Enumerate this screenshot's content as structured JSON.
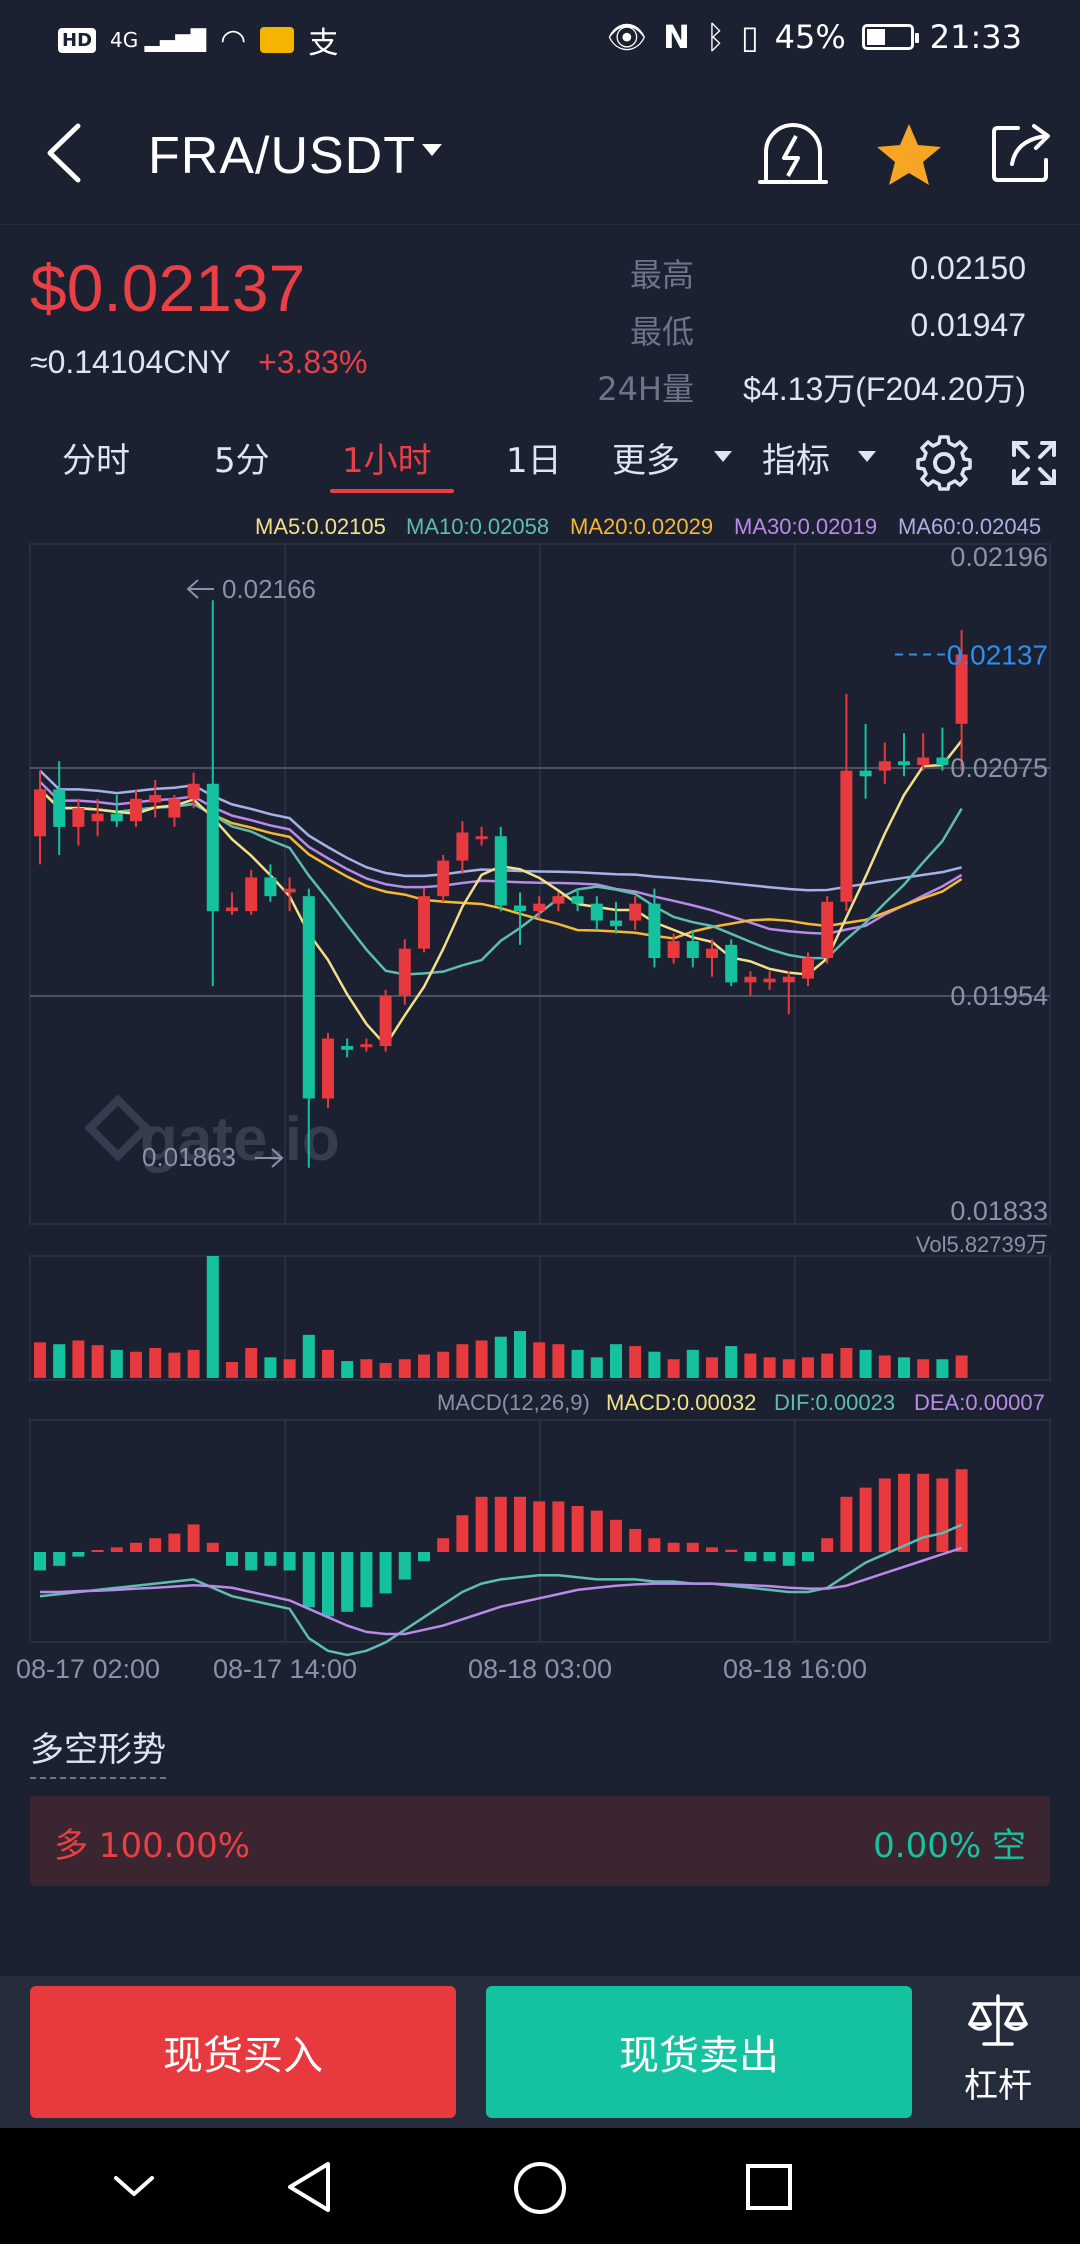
{
  "status_bar": {
    "hd": "HD",
    "network": "4G",
    "alipay": "支",
    "battery": "45%",
    "time": "21:33"
  },
  "header": {
    "pair": "FRA/USDT"
  },
  "price": {
    "last": "$0.02137",
    "cny": "≈0.14104CNY",
    "change": "+3.83%",
    "high_label": "最高",
    "high_value": "0.02150",
    "low_label": "最低",
    "low_value": "0.01947",
    "vol_label": "24H量",
    "vol_value": "$4.13万(F204.20万)"
  },
  "tabs": {
    "items": [
      "分时",
      "5分",
      "1小时",
      "1日",
      "更多",
      "指标"
    ],
    "active": "1小时"
  },
  "colors": {
    "up": "#e8393e",
    "down": "#15c2a0",
    "ma5": "#f3e08a",
    "ma10": "#5fbdb0",
    "ma20": "#f7b733",
    "ma30": "#b98ae8",
    "ma60": "#a6b2e6",
    "last_price": "#2d8ef0"
  },
  "chart_data": {
    "type": "candlestick",
    "ma_legend": {
      "ma5": "MA5:0.02105",
      "ma10": "MA10:0.02058",
      "ma20": "MA20:0.02029",
      "ma30": "MA30:0.02019",
      "ma60": "MA60:0.02045"
    },
    "y_ticks": [
      "0.02196",
      "0.02075",
      "0.01954",
      "0.01833"
    ],
    "ylim": [
      0.01833,
      0.02196
    ],
    "last_price_label": "0.02137",
    "high_marker": "0.02166",
    "low_marker": "0.01863",
    "x_ticks": [
      "08-17 02:00",
      "08-17 14:00",
      "08-18 03:00",
      "08-18 16:00"
    ],
    "volume_label": "Vol5.82739万",
    "macd_legend": {
      "title": "MACD(12,26,9)",
      "macd": "MACD:0.00032",
      "dif": "DIF:0.00023",
      "dea": "DEA:0.00007"
    },
    "watermark": "gate.io",
    "candles": [
      {
        "o": 0.0204,
        "h": 0.02075,
        "l": 0.02025,
        "c": 0.02065
      },
      {
        "o": 0.02065,
        "h": 0.0208,
        "l": 0.0203,
        "c": 0.02045
      },
      {
        "o": 0.02045,
        "h": 0.0206,
        "l": 0.02035,
        "c": 0.02055
      },
      {
        "o": 0.02048,
        "h": 0.0206,
        "l": 0.0204,
        "c": 0.02052
      },
      {
        "o": 0.02052,
        "h": 0.02062,
        "l": 0.02045,
        "c": 0.02048
      },
      {
        "o": 0.02048,
        "h": 0.02065,
        "l": 0.02045,
        "c": 0.0206
      },
      {
        "o": 0.02058,
        "h": 0.0207,
        "l": 0.0205,
        "c": 0.02062
      },
      {
        "o": 0.0205,
        "h": 0.02062,
        "l": 0.02045,
        "c": 0.0206
      },
      {
        "o": 0.0206,
        "h": 0.02074,
        "l": 0.02055,
        "c": 0.02068
      },
      {
        "o": 0.02068,
        "h": 0.02166,
        "l": 0.0196,
        "c": 0.02
      },
      {
        "o": 0.02,
        "h": 0.0201,
        "l": 0.01998,
        "c": 0.02002
      },
      {
        "o": 0.02,
        "h": 0.02022,
        "l": 0.01998,
        "c": 0.02018
      },
      {
        "o": 0.02018,
        "h": 0.02025,
        "l": 0.02005,
        "c": 0.02008
      },
      {
        "o": 0.0201,
        "h": 0.02018,
        "l": 0.02,
        "c": 0.02012
      },
      {
        "o": 0.02008,
        "h": 0.02012,
        "l": 0.01863,
        "c": 0.019
      },
      {
        "o": 0.019,
        "h": 0.01935,
        "l": 0.01895,
        "c": 0.01932
      },
      {
        "o": 0.01928,
        "h": 0.01932,
        "l": 0.01922,
        "c": 0.01926
      },
      {
        "o": 0.01928,
        "h": 0.01932,
        "l": 0.01925,
        "c": 0.01929
      },
      {
        "o": 0.01928,
        "h": 0.01958,
        "l": 0.01925,
        "c": 0.01955
      },
      {
        "o": 0.01955,
        "h": 0.01985,
        "l": 0.0195,
        "c": 0.0198
      },
      {
        "o": 0.0198,
        "h": 0.02012,
        "l": 0.01978,
        "c": 0.02008
      },
      {
        "o": 0.02008,
        "h": 0.0203,
        "l": 0.02005,
        "c": 0.02027
      },
      {
        "o": 0.02027,
        "h": 0.02048,
        "l": 0.0202,
        "c": 0.02042
      },
      {
        "o": 0.0204,
        "h": 0.02045,
        "l": 0.02035,
        "c": 0.0204
      },
      {
        "o": 0.0204,
        "h": 0.02045,
        "l": 0.02,
        "c": 0.02003
      },
      {
        "o": 0.02003,
        "h": 0.0201,
        "l": 0.01982,
        "c": 0.02
      },
      {
        "o": 0.02,
        "h": 0.02008,
        "l": 0.01996,
        "c": 0.02004
      },
      {
        "o": 0.02004,
        "h": 0.0201,
        "l": 0.02,
        "c": 0.02008
      },
      {
        "o": 0.02008,
        "h": 0.02012,
        "l": 0.02,
        "c": 0.02004
      },
      {
        "o": 0.02004,
        "h": 0.02008,
        "l": 0.0199,
        "c": 0.01995
      },
      {
        "o": 0.01995,
        "h": 0.02005,
        "l": 0.01988,
        "c": 0.01992
      },
      {
        "o": 0.01995,
        "h": 0.02008,
        "l": 0.0199,
        "c": 0.02004
      },
      {
        "o": 0.02004,
        "h": 0.02012,
        "l": 0.0197,
        "c": 0.01975
      },
      {
        "o": 0.01975,
        "h": 0.01988,
        "l": 0.01972,
        "c": 0.01984
      },
      {
        "o": 0.01984,
        "h": 0.0199,
        "l": 0.0197,
        "c": 0.01975
      },
      {
        "o": 0.01975,
        "h": 0.01985,
        "l": 0.01965,
        "c": 0.0198
      },
      {
        "o": 0.01982,
        "h": 0.01985,
        "l": 0.0196,
        "c": 0.01962
      },
      {
        "o": 0.01962,
        "h": 0.01968,
        "l": 0.01955,
        "c": 0.01965
      },
      {
        "o": 0.01962,
        "h": 0.01968,
        "l": 0.01958,
        "c": 0.01964
      },
      {
        "o": 0.01962,
        "h": 0.01968,
        "l": 0.01945,
        "c": 0.01965
      },
      {
        "o": 0.01964,
        "h": 0.01978,
        "l": 0.0196,
        "c": 0.01975
      },
      {
        "o": 0.01975,
        "h": 0.02008,
        "l": 0.01972,
        "c": 0.02005
      },
      {
        "o": 0.02005,
        "h": 0.02116,
        "l": 0.02,
        "c": 0.02075
      },
      {
        "o": 0.02075,
        "h": 0.021,
        "l": 0.0206,
        "c": 0.02072
      },
      {
        "o": 0.02075,
        "h": 0.0209,
        "l": 0.02068,
        "c": 0.0208
      },
      {
        "o": 0.0208,
        "h": 0.02095,
        "l": 0.02072,
        "c": 0.02078
      },
      {
        "o": 0.02078,
        "h": 0.02095,
        "l": 0.02075,
        "c": 0.02082
      },
      {
        "o": 0.02082,
        "h": 0.02098,
        "l": 0.02075,
        "c": 0.02078
      },
      {
        "o": 0.021,
        "h": 0.0215,
        "l": 0.02075,
        "c": 0.02137
      }
    ],
    "volumes": [
      38,
      36,
      40,
      35,
      30,
      28,
      32,
      27,
      30,
      130,
      17,
      32,
      22,
      20,
      46,
      30,
      18,
      20,
      16,
      20,
      25,
      28,
      36,
      40,
      44,
      50,
      38,
      36,
      30,
      22,
      36,
      34,
      28,
      20,
      30,
      22,
      34,
      26,
      22,
      20,
      22,
      26,
      32,
      30,
      24,
      22,
      20,
      20,
      24
    ],
    "macd_hist": [
      -0.4,
      -0.3,
      -0.1,
      0.0,
      0.1,
      0.2,
      0.3,
      0.4,
      0.6,
      0.2,
      -0.3,
      -0.4,
      -0.3,
      -0.4,
      -1.2,
      -1.4,
      -1.3,
      -1.2,
      -0.9,
      -0.6,
      -0.2,
      0.3,
      0.8,
      1.2,
      1.2,
      1.2,
      1.1,
      1.1,
      1.0,
      0.9,
      0.7,
      0.5,
      0.3,
      0.2,
      0.2,
      0.1,
      0.05,
      -0.2,
      -0.2,
      -0.3,
      -0.2,
      0.3,
      1.2,
      1.4,
      1.6,
      1.7,
      1.7,
      1.6,
      1.8
    ],
    "macd_dif": [
      -0.1,
      -0.05,
      0.0,
      0.05,
      0.1,
      0.15,
      0.2,
      0.25,
      0.3,
      0.1,
      -0.1,
      -0.2,
      -0.3,
      -0.4,
      -1.1,
      -1.4,
      -1.5,
      -1.4,
      -1.2,
      -0.9,
      -0.6,
      -0.3,
      0.0,
      0.2,
      0.3,
      0.35,
      0.4,
      0.4,
      0.35,
      0.3,
      0.3,
      0.3,
      0.25,
      0.25,
      0.2,
      0.2,
      0.15,
      0.1,
      0.05,
      0.0,
      0.0,
      0.1,
      0.4,
      0.7,
      0.9,
      1.1,
      1.3,
      1.4,
      1.6
    ],
    "macd_dea": [
      0.0,
      0.0,
      0.02,
      0.03,
      0.05,
      0.08,
      0.1,
      0.13,
      0.16,
      0.14,
      0.1,
      0.0,
      -0.1,
      -0.2,
      -0.4,
      -0.6,
      -0.8,
      -0.95,
      -1.0,
      -1.0,
      -0.9,
      -0.8,
      -0.65,
      -0.5,
      -0.35,
      -0.25,
      -0.15,
      -0.05,
      0.05,
      0.1,
      0.15,
      0.18,
      0.2,
      0.2,
      0.2,
      0.2,
      0.18,
      0.16,
      0.14,
      0.1,
      0.08,
      0.08,
      0.15,
      0.3,
      0.45,
      0.6,
      0.75,
      0.9,
      1.05
    ]
  },
  "long_short": {
    "title": "多空形势",
    "long": "多 100.00%",
    "short": "0.00% 空",
    "long_pct": 100
  },
  "actions": {
    "buy": "现货买入",
    "sell": "现货卖出",
    "leverage": "杠杆"
  }
}
